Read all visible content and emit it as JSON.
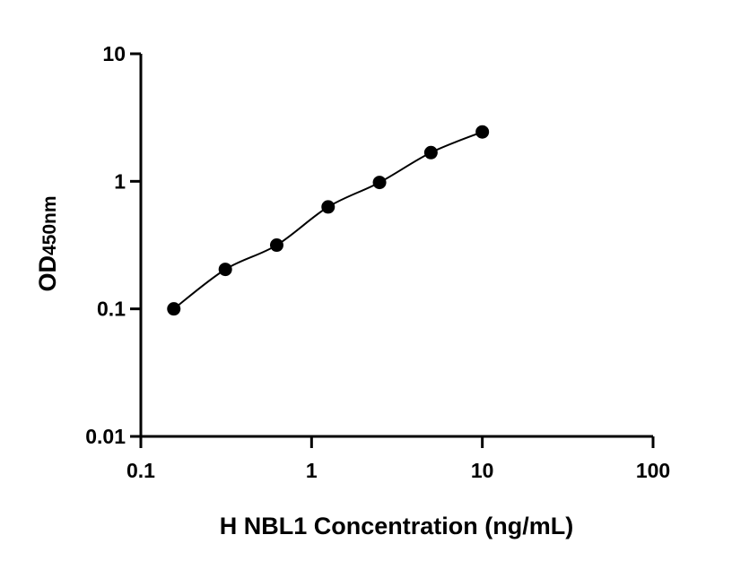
{
  "chart_data": {
    "type": "scatter",
    "title": "",
    "xlabel": "H NBL1 Concentration (ng/mL)",
    "ylabel_main": "OD",
    "ylabel_sub": "450nm",
    "x_scale": "log",
    "y_scale": "log",
    "xlim": [
      0.1,
      100
    ],
    "ylim": [
      0.01,
      10
    ],
    "x_ticks": [
      "0.1",
      "1",
      "10",
      "100"
    ],
    "y_ticks": [
      "0.01",
      "0.1",
      "1",
      "10"
    ],
    "grid": false,
    "fit_line": true,
    "series": [
      {
        "x": [
          0.156,
          0.3125,
          0.625,
          1.25,
          2.5,
          5,
          10
        ],
        "y": [
          0.1,
          0.204,
          0.316,
          0.63,
          0.98,
          1.68,
          2.44
        ]
      }
    ],
    "colors": {
      "marker": "#000000",
      "line": "#000000",
      "axis": "#000000"
    }
  }
}
